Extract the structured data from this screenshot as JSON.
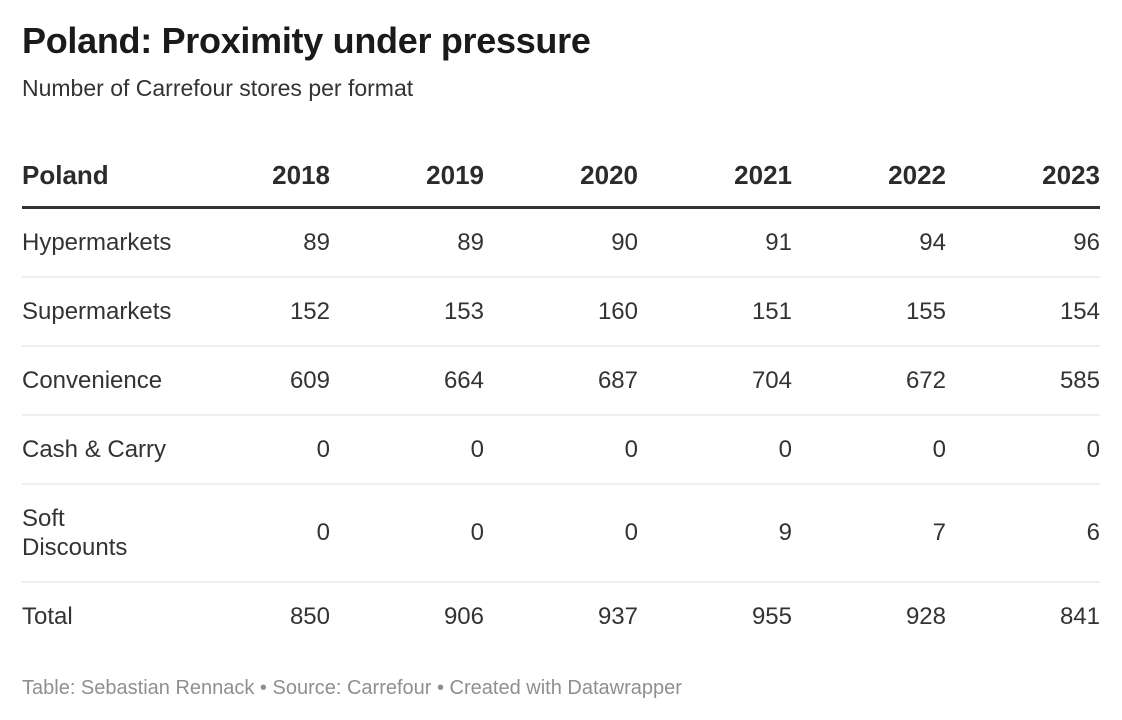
{
  "header": {
    "title": "Poland: Proximity under pressure",
    "subtitle": "Number of Carrefour stores per format"
  },
  "chart_data": {
    "type": "table",
    "title": "Poland: Proximity under pressure",
    "subtitle": "Number of Carrefour stores per format",
    "columns": [
      "Poland",
      "2018",
      "2019",
      "2020",
      "2021",
      "2022",
      "2023"
    ],
    "rows": [
      {
        "label": "Hypermarkets",
        "values": [
          89,
          89,
          90,
          91,
          94,
          96
        ]
      },
      {
        "label": "Supermarkets",
        "values": [
          152,
          153,
          160,
          151,
          155,
          154
        ]
      },
      {
        "label": "Convenience",
        "values": [
          609,
          664,
          687,
          704,
          672,
          585
        ]
      },
      {
        "label": "Cash & Carry",
        "values": [
          0,
          0,
          0,
          0,
          0,
          0
        ]
      },
      {
        "label": "Soft\nDiscounts",
        "values": [
          0,
          0,
          0,
          9,
          7,
          6
        ]
      },
      {
        "label": "Total",
        "values": [
          850,
          906,
          937,
          955,
          928,
          841
        ]
      }
    ],
    "layout": {
      "first_column_align": "left",
      "value_columns_align": "right",
      "gridlines": "horizontal-only",
      "legend": "none"
    }
  },
  "footer": {
    "text": "Table: Sebastian Rennack • Source: Carrefour • Created with Datawrapper"
  },
  "colors": {
    "background": "#ffffff",
    "title_text": "#1a1a1a",
    "body_text": "#333333",
    "header_border": "#333333",
    "row_border": "#eeeeee",
    "footer_text": "#8f8f8f"
  }
}
